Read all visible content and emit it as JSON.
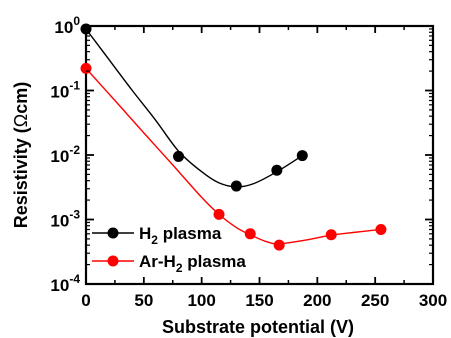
{
  "chart_data": {
    "type": "scatter",
    "xlabel": "Substrate potential (V)",
    "ylabel_prefix": "Resistivity (",
    "ylabel_symbol": "Ω",
    "ylabel_suffix": "cm)",
    "xlim": [
      0,
      300
    ],
    "ylim": [
      0.0001,
      1
    ],
    "yscale": "log",
    "x_ticks": [
      0,
      50,
      100,
      150,
      200,
      250,
      300
    ],
    "y_ticks": [
      {
        "value": 1,
        "base": "10",
        "exp": "0"
      },
      {
        "value": 0.1,
        "base": "10",
        "exp": "-1"
      },
      {
        "value": 0.01,
        "base": "10",
        "exp": "-2"
      },
      {
        "value": 0.001,
        "base": "10",
        "exp": "-3"
      },
      {
        "value": 0.0001,
        "base": "10",
        "exp": "-4"
      }
    ],
    "legend_position": "bottom-left",
    "series": [
      {
        "name_parts": [
          "H",
          "2",
          " plasma"
        ],
        "color": "#000000",
        "points": [
          [
            0,
            0.9
          ],
          [
            80,
            0.0095
          ],
          [
            130,
            0.0033
          ],
          [
            165,
            0.0058
          ],
          [
            187,
            0.0098
          ]
        ],
        "curve": [
          [
            0,
            0.9
          ],
          [
            20,
            0.3
          ],
          [
            40,
            0.1
          ],
          [
            60,
            0.035
          ],
          [
            80,
            0.0115
          ],
          [
            100,
            0.0055
          ],
          [
            115,
            0.0037
          ],
          [
            130,
            0.0032
          ],
          [
            145,
            0.0036
          ],
          [
            165,
            0.0055
          ],
          [
            187,
            0.0098
          ]
        ]
      },
      {
        "name_parts": [
          "Ar-H",
          "2",
          " plasma"
        ],
        "color": "#ff0000",
        "points": [
          [
            0,
            0.22
          ],
          [
            115,
            0.0012
          ],
          [
            142,
            0.0006
          ],
          [
            167,
            0.0004
          ],
          [
            212,
            0.00058
          ],
          [
            255,
            0.0007
          ]
        ],
        "curve": [
          [
            0,
            0.22
          ],
          [
            25,
            0.07
          ],
          [
            50,
            0.022
          ],
          [
            75,
            0.007
          ],
          [
            100,
            0.0022
          ],
          [
            115,
            0.0012
          ],
          [
            130,
            0.00075
          ],
          [
            142,
            0.00058
          ],
          [
            155,
            0.00046
          ],
          [
            167,
            0.00042
          ],
          [
            190,
            0.00048
          ],
          [
            212,
            0.00057
          ],
          [
            235,
            0.00064
          ],
          [
            255,
            0.0007
          ]
        ]
      }
    ]
  }
}
